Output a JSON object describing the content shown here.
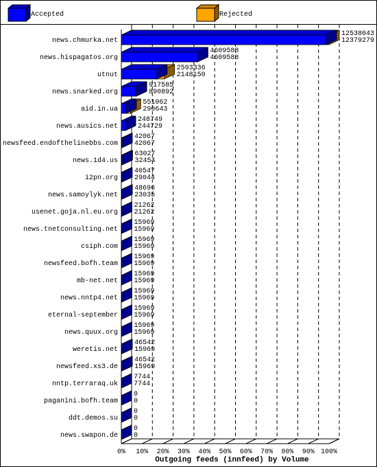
{
  "chart_data": {
    "type": "bar3d",
    "x_label": "Outgoing feeds (innfeed) by Volume",
    "categories": [
      "news.chmurka.net",
      "news.hispagatos.org",
      "utnut",
      "news.snarked.org",
      "aid.in.ua",
      "news.ausics.net",
      "newsfeed.endofthelinebbs.com",
      "news.1d4.us",
      "i2pn.org",
      "news.samoylyk.net",
      "usenet.goja.nl.eu.org",
      "news.tnetconsulting.net",
      "csiph.com",
      "newsfeed.bofh.team",
      "mb-net.net",
      "news.nntp4.net",
      "eternal-september",
      "news.quux.org",
      "weretis.net",
      "newsfeed.xs3.de",
      "nntp.terraraq.uk",
      "paganini.bofh.team",
      "ddt.demos.su",
      "news.swapon.de"
    ],
    "series": [
      {
        "name": "Accepted",
        "color": "#0000ff",
        "values": [
          12379279,
          4609588,
          2148150,
          890892,
          290643,
          244729,
          42067,
          32454,
          29044,
          23035,
          21262,
          15969,
          15969,
          15969,
          15969,
          15969,
          15969,
          15969,
          15969,
          15969,
          7744,
          0,
          0,
          0
        ]
      },
      {
        "name": "Rejected",
        "color": "#ffa500",
        "values": [
          12538043,
          4609588,
          2593336,
          917585,
          551062,
          248749,
          42067,
          63027,
          40547,
          48696,
          21262,
          15969,
          15969,
          15969,
          15969,
          15969,
          15969,
          15969,
          46542,
          46542,
          7744,
          0,
          0,
          0
        ]
      }
    ],
    "xlim": [
      0,
      12538043
    ],
    "xticks": [
      {
        "value": 0,
        "label": "0%"
      },
      {
        "value": 1253804.3,
        "label": "10%"
      },
      {
        "value": 2507608.6,
        "label": "20%"
      },
      {
        "value": 3761412.9,
        "label": "30%"
      },
      {
        "value": 5015217.2,
        "label": "40%"
      },
      {
        "value": 6269021.5,
        "label": "50%"
      },
      {
        "value": 7522825.8,
        "label": "60%"
      },
      {
        "value": 8776630.1,
        "label": "70%"
      },
      {
        "value": 10030434.4,
        "label": "80%"
      },
      {
        "value": 11284238.7,
        "label": "90%"
      },
      {
        "value": 12538043,
        "label": "100%"
      }
    ],
    "grid": true
  }
}
